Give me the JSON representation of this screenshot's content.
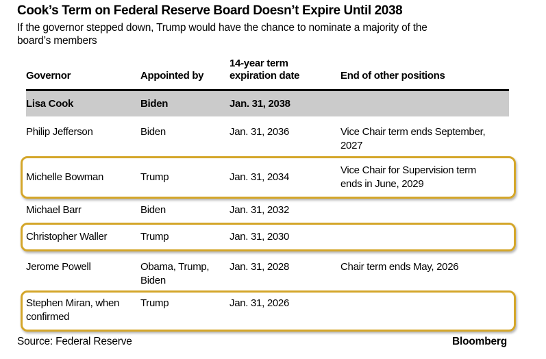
{
  "chart_data": {
    "type": "table",
    "title": "Cook’s Term on Federal Reserve Board Doesn’t Expire Until 2038",
    "subtitle": "If the governor stepped down, Trump would have the chance to nominate a majority of the board’s members",
    "columns": [
      "Governor",
      "Appointed by",
      "14-year term expiration date",
      "End of other positions"
    ],
    "rows": [
      {
        "governor": "Lisa Cook",
        "appointed_by": "Biden",
        "expiration": "Jan. 31, 2038",
        "other_positions": "",
        "highlight": "gray-fill"
      },
      {
        "governor": "Philip Jefferson",
        "appointed_by": "Biden",
        "expiration": "Jan. 31, 2036",
        "other_positions": "Vice Chair term ends September, 2027",
        "highlight": "none"
      },
      {
        "governor": "Michelle Bowman",
        "appointed_by": "Trump",
        "expiration": "Jan. 31, 2034",
        "other_positions": "Vice Chair for Supervision term ends in June, 2029",
        "highlight": "gold-outline"
      },
      {
        "governor": "Michael Barr",
        "appointed_by": "Biden",
        "expiration": "Jan. 31, 2032",
        "other_positions": "",
        "highlight": "none"
      },
      {
        "governor": "Christopher Waller",
        "appointed_by": "Trump",
        "expiration": "Jan. 31, 2030",
        "other_positions": "",
        "highlight": "gold-outline"
      },
      {
        "governor": "Jerome Powell",
        "appointed_by": "Obama, Trump, Biden",
        "expiration": "Jan. 31, 2028",
        "other_positions": "Chair term ends May, 2026",
        "highlight": "none"
      },
      {
        "governor": "Stephen Miran, when confirmed",
        "appointed_by": "Trump",
        "expiration": "Jan. 31, 2026",
        "other_positions": "",
        "highlight": "gold-outline"
      }
    ],
    "source": "Source: Federal Reserve",
    "brand": "Bloomberg",
    "colors": {
      "highlight_gray": "#CBCBCB",
      "gold_border": "#D4A62A",
      "header_rule": "#000000",
      "text": "#000000",
      "background": "#FFFFFF"
    },
    "layout_hints": {
      "grid": "off",
      "header_rule_weight": "3px",
      "gold_corner_radius": "10px"
    }
  }
}
